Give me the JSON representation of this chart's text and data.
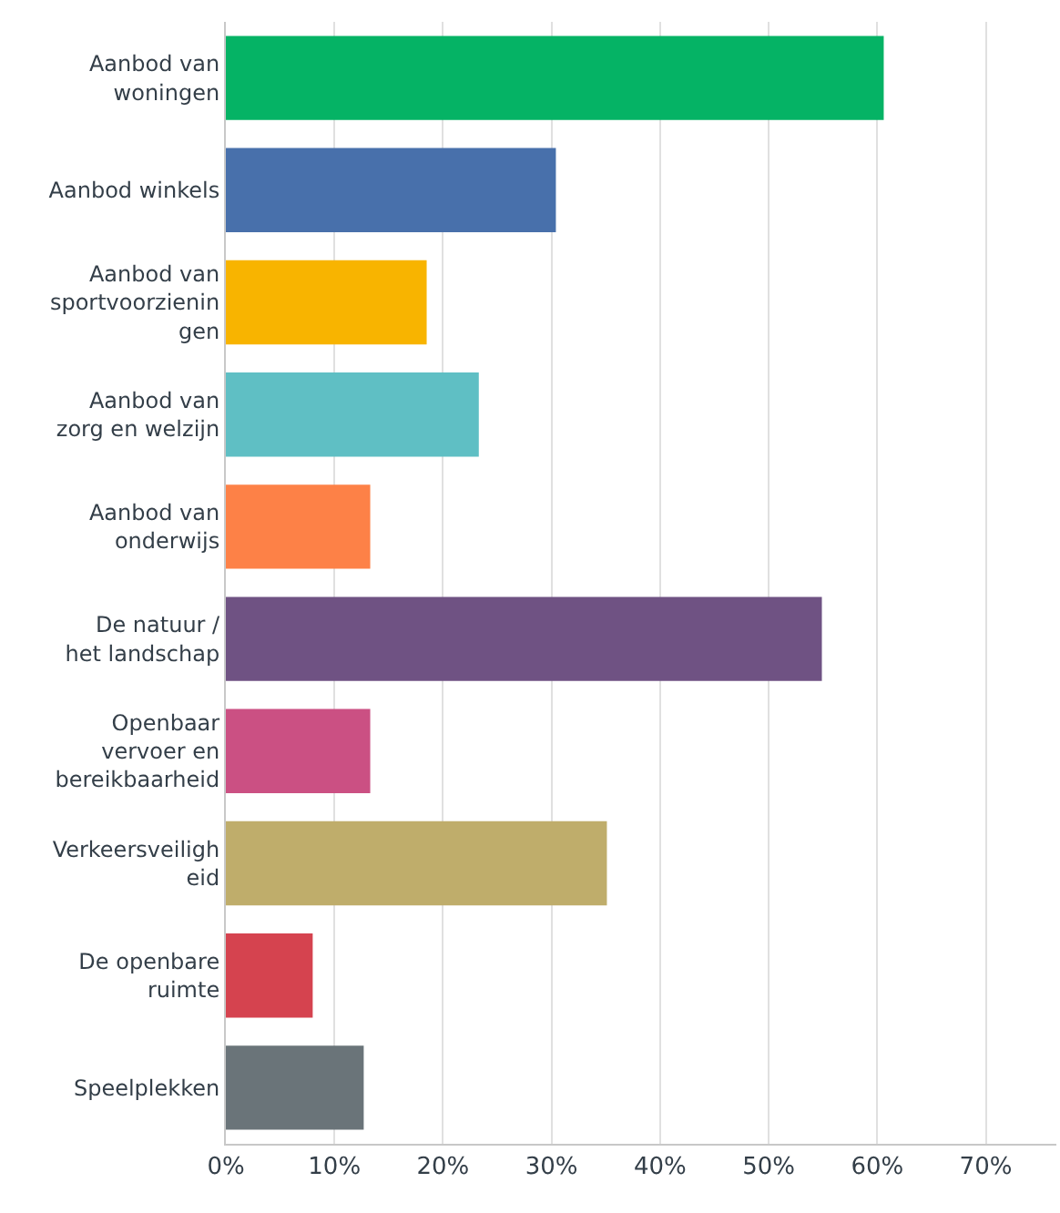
{
  "chart_data": {
    "type": "bar",
    "orientation": "horizontal",
    "categories": [
      "Aanbod van\nwoningen",
      "Aanbod winkels",
      "Aanbod van\nsportvoorzienin\ngen",
      "Aanbod van\nzorg en welzijn",
      "Aanbod van\nonderwijs",
      "De natuur /\nhet landschap",
      "Openbaar\nvervoer en\nbereikbaarheid",
      "Verkeersveiligh\neid",
      "De openbare\nruimte",
      "Speelplekken"
    ],
    "values": [
      60.6,
      30.4,
      18.5,
      23.3,
      13.3,
      54.9,
      13.3,
      35.1,
      8.0,
      12.7
    ],
    "colors": [
      "#05b365",
      "#4870ab",
      "#f8b400",
      "#5fbfc4",
      "#fd8147",
      "#6f5283",
      "#cb5083",
      "#bfad6b",
      "#d5434f",
      "#6a7479"
    ],
    "xlim": [
      0,
      76.5
    ],
    "xticks": [
      {
        "value": 0,
        "label": "0%"
      },
      {
        "value": 10,
        "label": "10%"
      },
      {
        "value": 20,
        "label": "20%"
      },
      {
        "value": 30,
        "label": "30%"
      },
      {
        "value": 40,
        "label": "40%"
      },
      {
        "value": 50,
        "label": "50%"
      },
      {
        "value": 60,
        "label": "60%"
      },
      {
        "value": 70,
        "label": "70%"
      }
    ],
    "grid": "x"
  }
}
